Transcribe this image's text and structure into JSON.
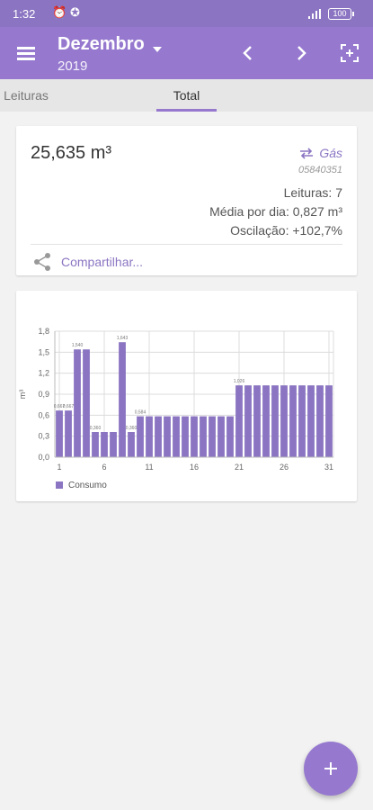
{
  "status_bar": {
    "time": "1:32",
    "battery": "100"
  },
  "header": {
    "month": "Dezembro",
    "year": "2019"
  },
  "tabs": [
    {
      "label": "Leituras"
    },
    {
      "label": "Total"
    }
  ],
  "summary": {
    "total": "25,635 m³",
    "meter_type": "Gás",
    "meter_id": "05840351",
    "readings": "Leituras: 7",
    "daily_avg": "Média por dia: 0,827 m³",
    "oscillation": "Oscilação: +102,7%",
    "share_label": "Compartilhar..."
  },
  "colors": {
    "accent": "#9679cf",
    "bar": "#8b75c2"
  },
  "chart_data": {
    "type": "bar",
    "ylabel": "m³",
    "ylim": [
      0,
      1.8
    ],
    "y_ticks": [
      "0,0",
      "0,3",
      "0,6",
      "0,9",
      "1,2",
      "1,5",
      "1,8"
    ],
    "x_ticks": [
      "1",
      "6",
      "11",
      "16",
      "21",
      "26",
      "31"
    ],
    "categories": [
      "1",
      "2",
      "3",
      "4",
      "5",
      "6",
      "7",
      "8",
      "9",
      "10",
      "11",
      "12",
      "13",
      "14",
      "15",
      "16",
      "17",
      "18",
      "19",
      "20",
      "21",
      "22",
      "23",
      "24",
      "25",
      "26",
      "27",
      "28",
      "29",
      "30",
      "31"
    ],
    "series": [
      {
        "name": "Consumo",
        "values": [
          0.667,
          0.667,
          1.54,
          1.54,
          0.36,
          0.36,
          0.36,
          1.643,
          0.36,
          0.584,
          0.584,
          0.584,
          0.584,
          0.584,
          0.584,
          0.584,
          0.584,
          0.584,
          0.584,
          0.584,
          1.026,
          1.026,
          1.026,
          1.026,
          1.026,
          1.026,
          1.026,
          1.026,
          1.026,
          1.026,
          1.026
        ]
      }
    ],
    "data_labels": [
      {
        "day": 1,
        "text": "0,667"
      },
      {
        "day": 2,
        "text": "0,667"
      },
      {
        "day": 3,
        "text": "1,540"
      },
      {
        "day": 5,
        "text": "0,360"
      },
      {
        "day": 8,
        "text": "1,643"
      },
      {
        "day": 9,
        "text": "0,360"
      },
      {
        "day": 10,
        "text": "0,584"
      },
      {
        "day": 21,
        "text": "1,026"
      }
    ]
  }
}
